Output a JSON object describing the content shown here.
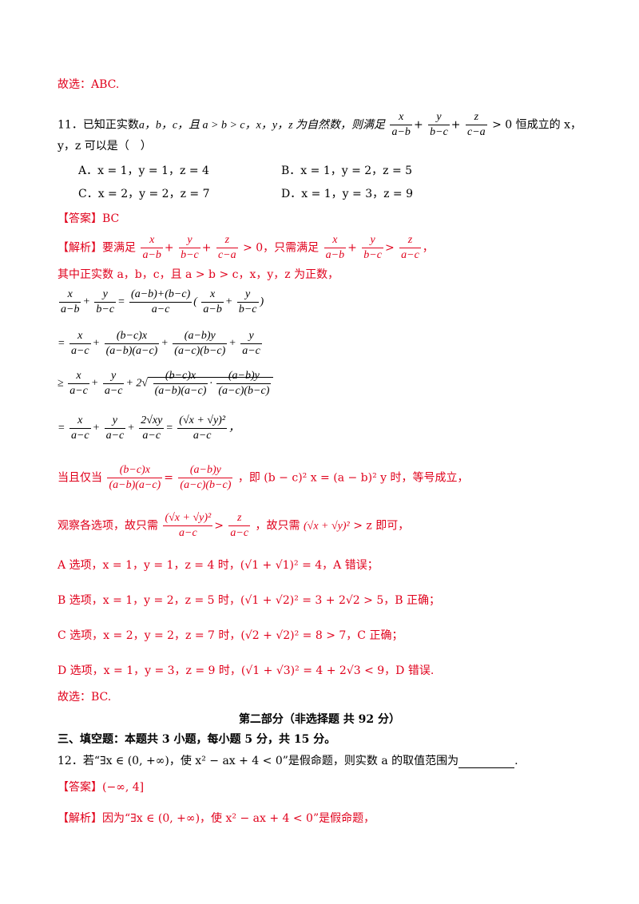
{
  "l1": "故选：ABC.",
  "q11": {
    "a": "11．已知正实数",
    "b": "a，b，c，且 a > b > c，x，y，z 为自然数，则满足",
    "cond": "> 0 恒成立的 x，",
    "c": "y，z 可以是（　）",
    "optA": "A．x = 1，y = 1，z = 4",
    "optB": "B．x = 1，y = 2，z = 5",
    "optC": "C．x = 2，y = 2，z = 7",
    "optD": "D．x = 1，y = 3，z = 9"
  },
  "ans11": "【答案】BC",
  "jx": {
    "p1a": "【解析】要满足",
    "p1b": "> 0，只需满足",
    "p2": "其中正实数 a，b，c，且 a > b > c，x，y，z 为正数，",
    "eq": "当且仅当",
    "eqb": "，即 (b − c)² x = (a − b)² y 时，等号成立，",
    "obs": "观察各选项，故只需",
    "obsb": "，故只需",
    "obsc": "> z 即可，",
    "A": "A 选项，x = 1，y = 1，z = 4 时，(√1 + √1)² = 4，A 错误；",
    "B": "B 选项，x = 1，y = 2，z = 5 时，(√1 + √2)² = 3 + 2√2 > 5，B 正确；",
    "C": "C 选项，x = 2，y = 2，z = 7 时，(√2 + √2)² = 8 > 7，C 正确；",
    "D": "D 选项，x = 1，y = 3，z = 9 时，(√1 + √3)² = 4 + 2√3 < 9，D 错误.",
    "sel": "故选：BC."
  },
  "part2": "第二部分（非选择题 共 92 分）",
  "sec3": "三、填空题：本题共 3 小题，每小题 5 分，共 15 分。",
  "q12": {
    "a": "12．若“∃x ∈ (0, +∞)，使 x² − ax + 4 < 0”是假命题，则实数 a 的取值范围为",
    "ans": "【答案】(−∞, 4]",
    "jx": "【解析】因为“∃x ∈ (0, +∞)，使 x² − ax + 4 < 0”是假命题，"
  }
}
